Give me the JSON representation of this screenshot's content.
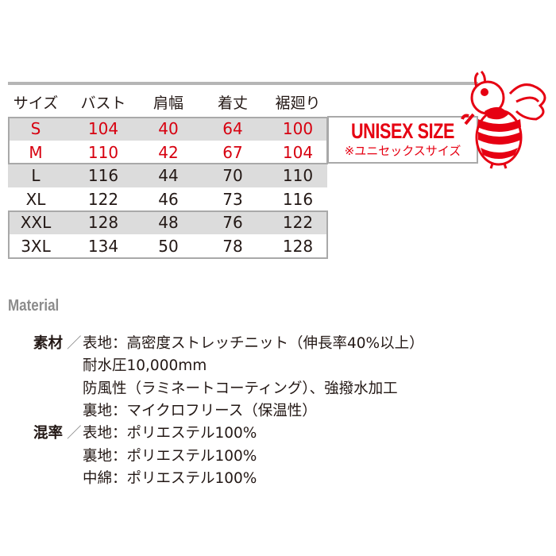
{
  "size_table": {
    "headers": [
      "サイズ",
      "バスト",
      "肩幅",
      "着丈",
      "裾廻り"
    ],
    "rows": [
      [
        "S",
        "104",
        "40",
        "64",
        "100"
      ],
      [
        "M",
        "110",
        "42",
        "67",
        "104"
      ],
      [
        "L",
        "116",
        "44",
        "70",
        "110"
      ],
      [
        "XL",
        "122",
        "46",
        "73",
        "116"
      ],
      [
        "XXL",
        "128",
        "48",
        "76",
        "122"
      ],
      [
        "3XL",
        "134",
        "50",
        "78",
        "128"
      ]
    ]
  },
  "unisex": {
    "title": "UNISEX SIZE",
    "subtitle": "※ユニセックスサイズ"
  },
  "colors": {
    "accent": "#e60012",
    "gray_row": "#dcdcdc",
    "border": "#a9a9a9"
  },
  "mascot": {
    "icon": "bee-with-wrench-icon"
  },
  "material": {
    "title": "Material",
    "slash": "／",
    "lines": [
      {
        "label": "素材",
        "text": "表地：高密度ストレッチニット（伸長率40%以上）"
      },
      {
        "label": "",
        "text": "耐水圧10,000mm"
      },
      {
        "label": "",
        "text": "防風性（ラミネートコーティング）、強撥水加工"
      },
      {
        "label": "",
        "text": "裏地：マイクロフリース（保温性）"
      },
      {
        "label": "混率",
        "text": "表地：ポリエステル100%"
      },
      {
        "label": "",
        "text": "裏地：ポリエステル100%"
      },
      {
        "label": "",
        "text": "中綿：ポリエステル100%"
      }
    ]
  }
}
